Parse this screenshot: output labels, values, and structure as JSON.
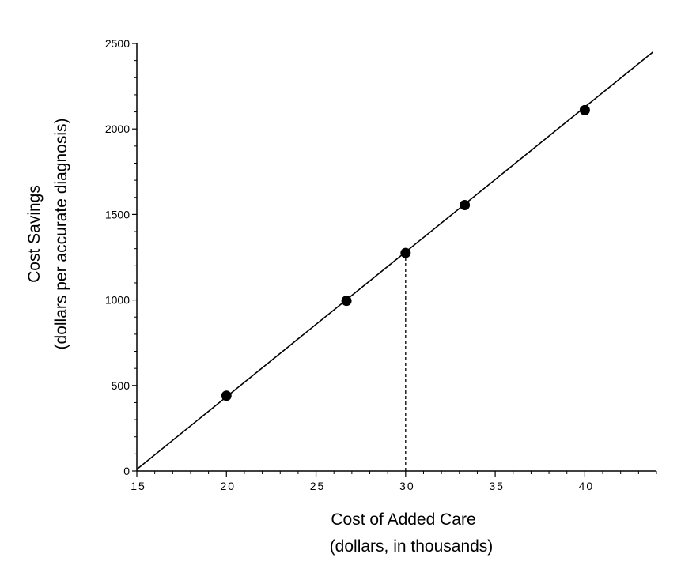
{
  "chart_data": {
    "type": "scatter",
    "title": "",
    "xlabel": "Cost of Added Care",
    "xlabel_sub": "(dollars, in thousands)",
    "ylabel": "Cost Savings",
    "ylabel_sub": "(dollars per accurate diagnosis)",
    "xlim": [
      15,
      44
    ],
    "ylim": [
      0,
      2500
    ],
    "x_ticks": [
      15,
      20,
      25,
      30,
      35,
      40
    ],
    "x_tick_labels": [
      "15",
      "20",
      "25",
      "30",
      "35",
      "40"
    ],
    "y_ticks": [
      0,
      500,
      1000,
      1500,
      2000,
      2500
    ],
    "y_tick_labels": [
      "0",
      "500",
      "1000",
      "1500",
      "2000",
      "2500"
    ],
    "points": [
      {
        "x": 20,
        "y": 440
      },
      {
        "x": 26.7,
        "y": 995
      },
      {
        "x": 30,
        "y": 1275
      },
      {
        "x": 33.3,
        "y": 1555
      },
      {
        "x": 40,
        "y": 2110
      }
    ],
    "fit_line": {
      "x": [
        15,
        43.8
      ],
      "y": [
        10,
        2450
      ]
    },
    "reference_line": {
      "x": 30,
      "y_from": 0,
      "y_to": 1275,
      "style": "dashed"
    },
    "grid": false,
    "colors": {
      "marks": "#000000",
      "background": "#ffffff"
    }
  }
}
